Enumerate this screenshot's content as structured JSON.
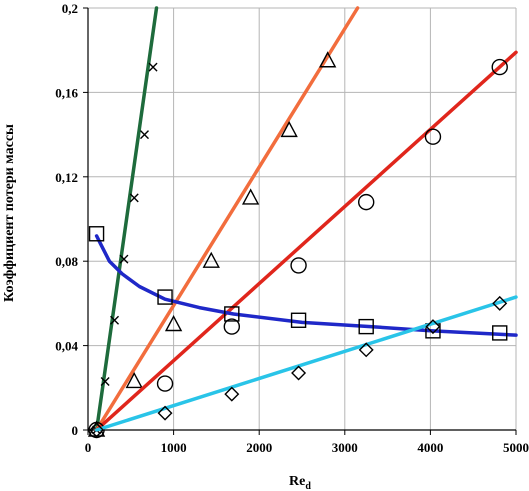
{
  "chart_data": {
    "type": "line",
    "title": "",
    "xlabel": "Re",
    "xlabel_sub": "d",
    "ylabel": "Коэффициент потери массы",
    "xlim": [
      0,
      5000
    ],
    "ylim": [
      0,
      0.2
    ],
    "x_ticks": [
      0,
      1000,
      2000,
      3000,
      4000,
      5000
    ],
    "x_tick_labels": [
      "0",
      "1000",
      "2000",
      "3000",
      "4000",
      "5000"
    ],
    "y_ticks": [
      0,
      0.04,
      0.08,
      0.12,
      0.16,
      0.2
    ],
    "y_tick_labels": [
      "0",
      "0,04",
      "0,08",
      "0,12",
      "0,16",
      "0,2"
    ],
    "grid": true,
    "legend": "none",
    "series": [
      {
        "marker": "x",
        "color": "#1e6b3c",
        "line": [
          [
            100,
            0
          ],
          [
            800,
            0.2
          ]
        ],
        "points": [
          [
            100,
            0
          ],
          [
            200,
            0.023
          ],
          [
            310,
            0.052
          ],
          [
            420,
            0.081
          ],
          [
            540,
            0.11
          ],
          [
            660,
            0.14
          ],
          [
            760,
            0.172
          ]
        ]
      },
      {
        "marker": "triangle",
        "color": "#f26d3d",
        "line": [
          [
            100,
            0
          ],
          [
            3150,
            0.2
          ]
        ],
        "points": [
          [
            100,
            0
          ],
          [
            540,
            0.023
          ],
          [
            1000,
            0.05
          ],
          [
            1440,
            0.08
          ],
          [
            1900,
            0.11
          ],
          [
            2350,
            0.142
          ],
          [
            2800,
            0.175
          ]
        ]
      },
      {
        "marker": "circle",
        "color": "#e0261c",
        "line": [
          [
            100,
            0
          ],
          [
            5000,
            0.179
          ]
        ],
        "points": [
          [
            100,
            0
          ],
          [
            900,
            0.022
          ],
          [
            1680,
            0.049
          ],
          [
            2460,
            0.078
          ],
          [
            3250,
            0.108
          ],
          [
            4030,
            0.139
          ],
          [
            4810,
            0.172
          ]
        ]
      },
      {
        "marker": "square",
        "color": "#1f28c8",
        "line": [
          [
            100,
            0.092
          ],
          [
            150,
            0.088
          ],
          [
            250,
            0.08
          ],
          [
            400,
            0.074
          ],
          [
            600,
            0.068
          ],
          [
            900,
            0.062
          ],
          [
            1300,
            0.058
          ],
          [
            1700,
            0.055
          ],
          [
            2500,
            0.051
          ],
          [
            3300,
            0.049
          ],
          [
            4000,
            0.047
          ],
          [
            5000,
            0.045
          ]
        ],
        "points": [
          [
            100,
            0.093
          ],
          [
            900,
            0.063
          ],
          [
            1680,
            0.055
          ],
          [
            2460,
            0.052
          ],
          [
            3250,
            0.049
          ],
          [
            4030,
            0.047
          ],
          [
            4810,
            0.046
          ]
        ]
      },
      {
        "marker": "diamond",
        "color": "#29c4e8",
        "line": [
          [
            100,
            0
          ],
          [
            5000,
            0.063
          ]
        ],
        "points": [
          [
            100,
            0
          ],
          [
            900,
            0.008
          ],
          [
            1680,
            0.017
          ],
          [
            2460,
            0.027
          ],
          [
            3250,
            0.038
          ],
          [
            4030,
            0.049
          ],
          [
            4810,
            0.06
          ]
        ]
      }
    ]
  }
}
